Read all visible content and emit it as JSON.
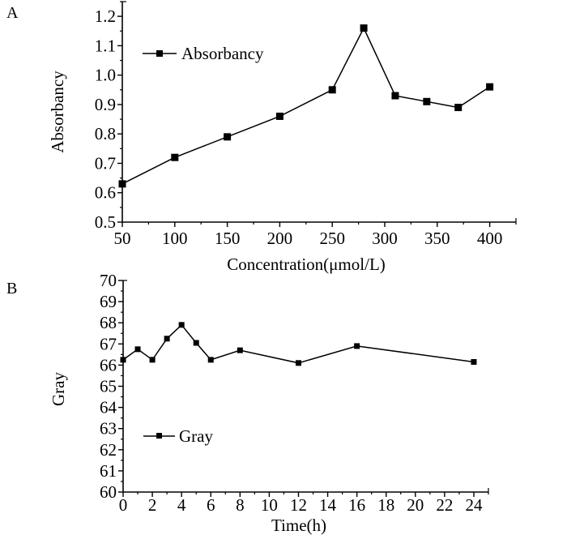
{
  "chart_data": [
    {
      "panel_label": "A",
      "type": "line",
      "title": "",
      "xlabel": "Concentration(μmol/L)",
      "ylabel": "Absorbancy",
      "xlim": [
        50,
        425
      ],
      "ylim": [
        0.5,
        1.25
      ],
      "x_ticks": [
        50,
        100,
        150,
        200,
        250,
        300,
        350,
        400
      ],
      "x_tick_labels": [
        "50",
        "100",
        "150",
        "200",
        "250",
        "300",
        "350",
        "400"
      ],
      "y_ticks": [
        0.5,
        0.6,
        0.7,
        0.8,
        0.9,
        1.0,
        1.1,
        1.2
      ],
      "y_tick_labels": [
        "0.5",
        "0.6",
        "0.7",
        "0.8",
        "0.9",
        "1.0",
        "1.1",
        "1.2"
      ],
      "grid": false,
      "legend_position": "top-left",
      "series": [
        {
          "name": "Absorbancy",
          "marker": "square",
          "color": "#000000",
          "x": [
            50,
            100,
            150,
            200,
            250,
            280,
            310,
            340,
            370,
            400
          ],
          "y": [
            0.63,
            0.72,
            0.79,
            0.86,
            0.95,
            1.16,
            0.93,
            0.91,
            0.89,
            0.96
          ]
        }
      ]
    },
    {
      "panel_label": "B",
      "type": "line",
      "title": "",
      "xlabel": "Time(h)",
      "ylabel": "Gray",
      "xlim": [
        0,
        25
      ],
      "ylim": [
        60,
        70
      ],
      "x_ticks": [
        0,
        2,
        4,
        6,
        8,
        10,
        12,
        14,
        16,
        18,
        20,
        22,
        24
      ],
      "x_tick_labels": [
        "0",
        "2",
        "4",
        "6",
        "8",
        "10",
        "12",
        "14",
        "16",
        "18",
        "20",
        "22",
        "24"
      ],
      "y_ticks": [
        60,
        61,
        62,
        63,
        64,
        65,
        66,
        67,
        68,
        69,
        70
      ],
      "y_tick_labels": [
        "60",
        "61",
        "62",
        "63",
        "64",
        "65",
        "66",
        "67",
        "68",
        "69",
        "70"
      ],
      "grid": false,
      "legend_position": "bottom-left",
      "series": [
        {
          "name": "Gray",
          "marker": "square",
          "color": "#000000",
          "x": [
            0,
            1,
            2,
            3,
            4,
            5,
            6,
            8,
            12,
            16,
            24
          ],
          "y": [
            66.25,
            66.75,
            66.25,
            67.25,
            67.9,
            67.05,
            66.25,
            66.7,
            66.1,
            66.9,
            66.15
          ]
        }
      ]
    }
  ]
}
